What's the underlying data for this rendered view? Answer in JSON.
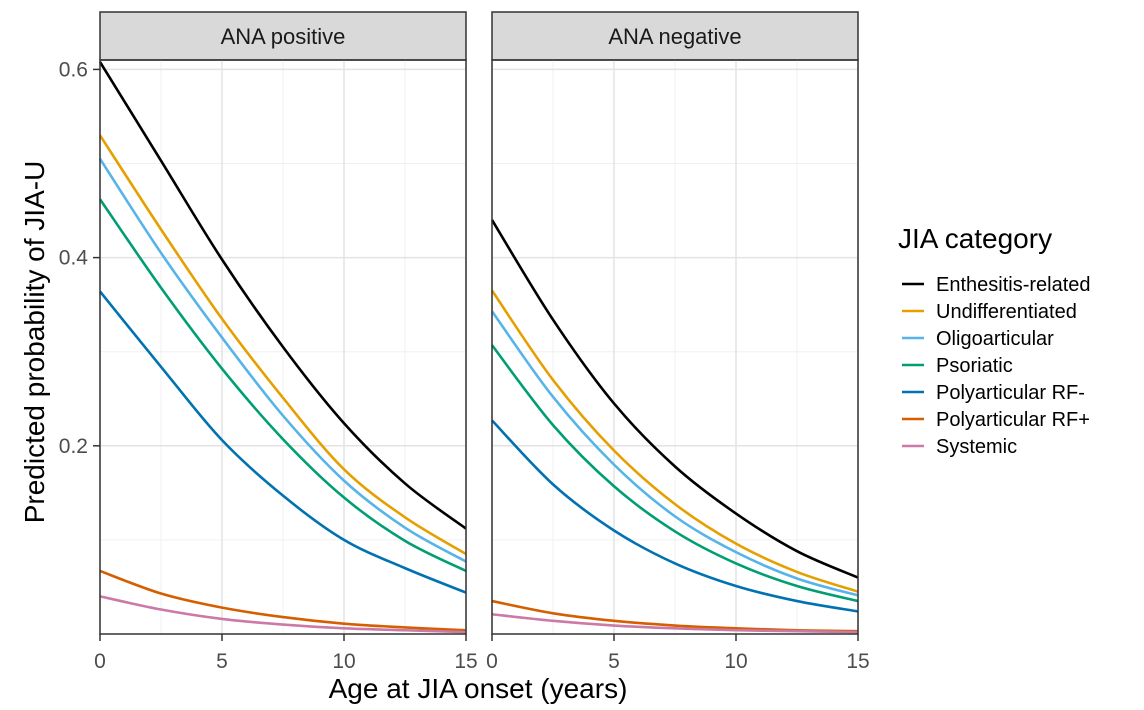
{
  "chart_data": {
    "type": "line",
    "xlabel": "Age at JIA onset (years)",
    "ylabel": "Predicted probability of JIA-U",
    "xlim": [
      0,
      15
    ],
    "ylim": [
      0,
      0.61
    ],
    "x_ticks": [
      0,
      5,
      10,
      15
    ],
    "y_ticks": [
      0.2,
      0.4,
      0.6
    ],
    "grid": true,
    "legend": {
      "title": "JIA category",
      "placement": "right"
    },
    "panels": [
      {
        "title": "ANA positive",
        "series": [
          {
            "name": "Enthesitis-related",
            "color": "#000000",
            "x": [
              0,
              2.5,
              5,
              7.5,
              10,
              12.5,
              15
            ],
            "values": [
              0.608,
              0.503,
              0.398,
              0.305,
              0.224,
              0.16,
              0.112
            ]
          },
          {
            "name": "Undifferentiated",
            "color": "#E69F00",
            "x": [
              0,
              2.5,
              5,
              7.5,
              10,
              12.5,
              15
            ],
            "values": [
              0.53,
              0.43,
              0.335,
              0.251,
              0.175,
              0.124,
              0.085
            ]
          },
          {
            "name": "Oligoarticular",
            "color": "#56B4E9",
            "x": [
              0,
              2.5,
              5,
              7.5,
              10,
              12.5,
              15
            ],
            "values": [
              0.505,
              0.405,
              0.315,
              0.232,
              0.163,
              0.113,
              0.077
            ]
          },
          {
            "name": "Psoriatic",
            "color": "#009E73",
            "x": [
              0,
              2.5,
              5,
              7.5,
              10,
              12.5,
              15
            ],
            "values": [
              0.462,
              0.368,
              0.282,
              0.207,
              0.145,
              0.099,
              0.067
            ]
          },
          {
            "name": "Polyarticular RF-",
            "color": "#0072B2",
            "x": [
              0,
              2.5,
              5,
              7.5,
              10,
              12.5,
              15
            ],
            "values": [
              0.364,
              0.284,
              0.206,
              0.147,
              0.1,
              0.07,
              0.044
            ]
          },
          {
            "name": "Polyarticular RF+",
            "color": "#D55E00",
            "x": [
              0,
              2.5,
              5,
              7.5,
              10,
              12.5,
              15
            ],
            "values": [
              0.067,
              0.043,
              0.028,
              0.018,
              0.011,
              0.007,
              0.004
            ]
          },
          {
            "name": "Systemic",
            "color": "#CC79A7",
            "x": [
              0,
              2.5,
              5,
              7.5,
              10,
              12.5,
              15
            ],
            "values": [
              0.04,
              0.026,
              0.016,
              0.01,
              0.006,
              0.004,
              0.002
            ]
          }
        ]
      },
      {
        "title": "ANA negative",
        "series": [
          {
            "name": "Enthesitis-related",
            "color": "#000000",
            "x": [
              0,
              2.5,
              5,
              7.5,
              10,
              12.5,
              15
            ],
            "values": [
              0.44,
              0.334,
              0.245,
              0.178,
              0.128,
              0.088,
              0.06
            ]
          },
          {
            "name": "Undifferentiated",
            "color": "#E69F00",
            "x": [
              0,
              2.5,
              5,
              7.5,
              10,
              12.5,
              15
            ],
            "values": [
              0.365,
              0.27,
              0.195,
              0.138,
              0.096,
              0.066,
              0.045
            ]
          },
          {
            "name": "Oligoarticular",
            "color": "#56B4E9",
            "x": [
              0,
              2.5,
              5,
              7.5,
              10,
              12.5,
              15
            ],
            "values": [
              0.343,
              0.252,
              0.18,
              0.125,
              0.087,
              0.059,
              0.041
            ]
          },
          {
            "name": "Psoriatic",
            "color": "#009E73",
            "x": [
              0,
              2.5,
              5,
              7.5,
              10,
              12.5,
              15
            ],
            "values": [
              0.307,
              0.222,
              0.157,
              0.109,
              0.075,
              0.051,
              0.035
            ]
          },
          {
            "name": "Polyarticular RF-",
            "color": "#0072B2",
            "x": [
              0,
              2.5,
              5,
              7.5,
              10,
              12.5,
              15
            ],
            "values": [
              0.227,
              0.159,
              0.11,
              0.075,
              0.051,
              0.035,
              0.024
            ]
          },
          {
            "name": "Polyarticular RF+",
            "color": "#D55E00",
            "x": [
              0,
              2.5,
              5,
              7.5,
              10,
              12.5,
              15
            ],
            "values": [
              0.035,
              0.022,
              0.014,
              0.009,
              0.006,
              0.004,
              0.003
            ]
          },
          {
            "name": "Systemic",
            "color": "#CC79A7",
            "x": [
              0,
              2.5,
              5,
              7.5,
              10,
              12.5,
              15
            ],
            "values": [
              0.021,
              0.014,
              0.009,
              0.006,
              0.004,
              0.003,
              0.002
            ]
          }
        ]
      }
    ]
  }
}
